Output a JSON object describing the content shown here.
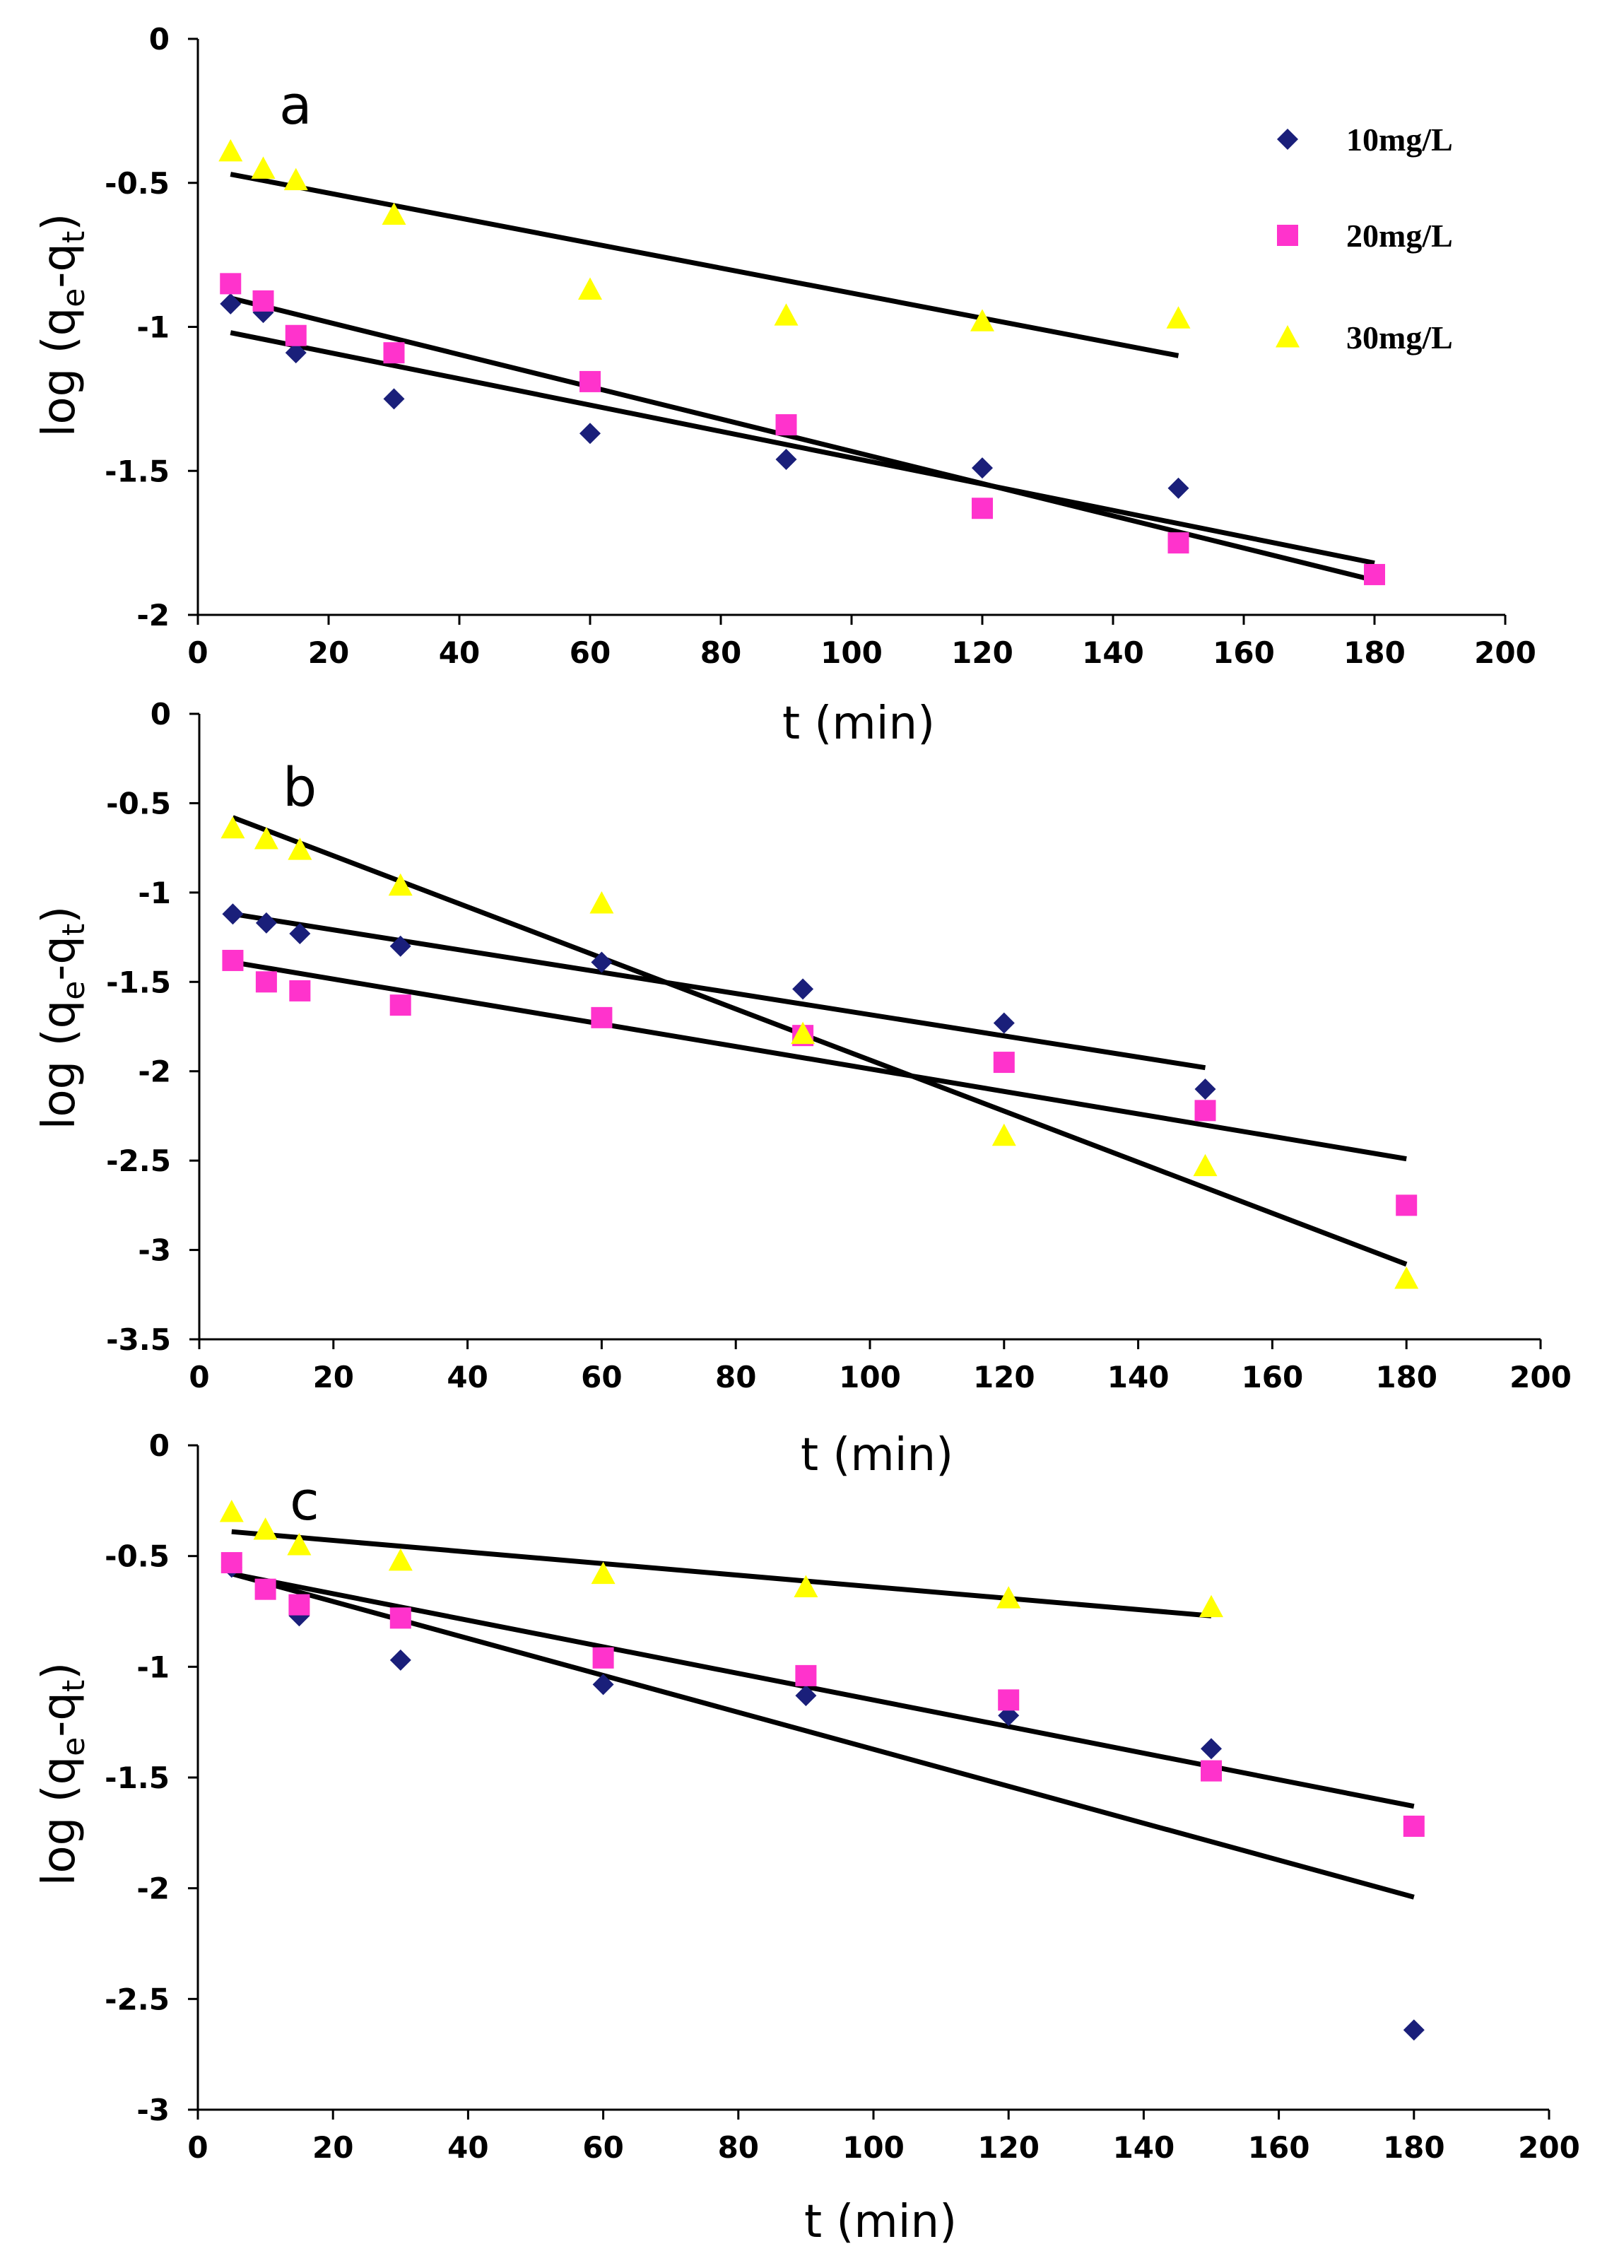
{
  "chart_data": [
    {
      "type": "scatter",
      "panel_label": "a",
      "xlabel": "t (min)",
      "ylabel": "log (qe-qt)",
      "ylabel_main": "log (q",
      "ylabel_sub1": "e",
      "ylabel_mid": "-q",
      "ylabel_sub2": "t",
      "ylabel_end": ")",
      "xlim": [
        0,
        200
      ],
      "ylim": [
        -2,
        0
      ],
      "x_ticks": [
        "0",
        "20",
        "40",
        "60",
        "80",
        "100",
        "120",
        "140",
        "160",
        "180",
        "200"
      ],
      "y_ticks": [
        "0",
        "-0.5",
        "-1",
        "-1.5",
        "-2"
      ],
      "grid": false,
      "legend_position": "top-right",
      "series": [
        {
          "name": "10mg/L",
          "marker": "diamond",
          "color": "#1a1f7a",
          "x": [
            5,
            10,
            15,
            30,
            60,
            90,
            120,
            150
          ],
          "y": [
            -0.92,
            -0.95,
            -1.09,
            -1.25,
            -1.37,
            -1.46,
            -1.49,
            -1.56
          ],
          "fit": {
            "x": [
              5,
              180
            ],
            "y": [
              -1.02,
              -1.82
            ]
          }
        },
        {
          "name": "20mg/L",
          "marker": "square",
          "color": "#ff33cc",
          "x": [
            5,
            10,
            15,
            30,
            60,
            90,
            120,
            150,
            180
          ],
          "y": [
            -0.85,
            -0.91,
            -1.03,
            -1.09,
            -1.19,
            -1.34,
            -1.63,
            -1.75,
            -1.86
          ],
          "fit": {
            "x": [
              5,
              180
            ],
            "y": [
              -0.9,
              -1.88
            ]
          }
        },
        {
          "name": "30mg/L",
          "marker": "triangle",
          "color": "#ffff00",
          "x": [
            5,
            10,
            15,
            30,
            60,
            90,
            120,
            150
          ],
          "y": [
            -0.39,
            -0.45,
            -0.49,
            -0.61,
            -0.87,
            -0.96,
            -0.98,
            -0.97
          ],
          "fit": {
            "x": [
              5,
              150
            ],
            "y": [
              -0.47,
              -1.1
            ]
          }
        }
      ]
    },
    {
      "type": "scatter",
      "panel_label": "b",
      "xlabel": "t (min)",
      "ylabel": "log (qe-qt)",
      "ylabel_main": "log (q",
      "ylabel_sub1": "e",
      "ylabel_mid": "-q",
      "ylabel_sub2": "t",
      "ylabel_end": ")",
      "xlim": [
        0,
        200
      ],
      "ylim": [
        -3.5,
        0
      ],
      "x_ticks": [
        "0",
        "20",
        "40",
        "60",
        "80",
        "100",
        "120",
        "140",
        "160",
        "180",
        "200"
      ],
      "y_ticks": [
        "0",
        "-0.5",
        "-1",
        "-1.5",
        "-2",
        "-2.5",
        "-3",
        "-3.5"
      ],
      "grid": false,
      "series": [
        {
          "name": "10mg/L",
          "marker": "diamond",
          "color": "#1a1f7a",
          "x": [
            5,
            10,
            15,
            30,
            60,
            90,
            120,
            150
          ],
          "y": [
            -1.12,
            -1.17,
            -1.23,
            -1.3,
            -1.39,
            -1.54,
            -1.73,
            -2.1
          ],
          "fit": {
            "x": [
              5,
              150
            ],
            "y": [
              -1.12,
              -1.98
            ]
          }
        },
        {
          "name": "20mg/L",
          "marker": "square",
          "color": "#ff33cc",
          "x": [
            5,
            10,
            15,
            30,
            60,
            90,
            120,
            150,
            180
          ],
          "y": [
            -1.38,
            -1.5,
            -1.55,
            -1.63,
            -1.7,
            -1.8,
            -1.95,
            -2.22,
            -2.75
          ],
          "fit": {
            "x": [
              5,
              180
            ],
            "y": [
              -1.39,
              -2.49
            ]
          }
        },
        {
          "name": "30mg/L",
          "marker": "triangle",
          "color": "#ffff00",
          "x": [
            5,
            10,
            15,
            30,
            60,
            90,
            120,
            150,
            180
          ],
          "y": [
            -0.64,
            -0.7,
            -0.76,
            -0.96,
            -1.06,
            -1.79,
            -2.36,
            -2.53,
            -3.16
          ],
          "fit": {
            "x": [
              5,
              180
            ],
            "y": [
              -0.58,
              -3.08
            ]
          }
        }
      ]
    },
    {
      "type": "scatter",
      "panel_label": "c",
      "xlabel": "t (min)",
      "ylabel": "log (qe-qt)",
      "ylabel_main": "log (q",
      "ylabel_sub1": "e",
      "ylabel_mid": "-q",
      "ylabel_sub2": "t",
      "ylabel_end": ")",
      "xlim": [
        0,
        200
      ],
      "ylim": [
        -3,
        0
      ],
      "x_ticks": [
        "0",
        "20",
        "40",
        "60",
        "80",
        "100",
        "120",
        "140",
        "160",
        "180",
        "200"
      ],
      "y_ticks": [
        "0",
        "-0.5",
        "-1",
        "-1.5",
        "-2",
        "-2.5",
        "-3"
      ],
      "grid": false,
      "series": [
        {
          "name": "10mg/L",
          "marker": "diamond",
          "color": "#1a1f7a",
          "x": [
            5,
            10,
            15,
            30,
            60,
            90,
            120,
            150,
            180
          ],
          "y": [
            -0.55,
            -0.65,
            -0.77,
            -0.97,
            -1.08,
            -1.13,
            -1.22,
            -1.37,
            -2.64
          ],
          "fit": {
            "x": [
              5,
              180
            ],
            "y": [
              -0.58,
              -2.04
            ]
          }
        },
        {
          "name": "20mg/L",
          "marker": "square",
          "color": "#ff33cc",
          "x": [
            5,
            10,
            15,
            30,
            60,
            90,
            120,
            150,
            180
          ],
          "y": [
            -0.53,
            -0.65,
            -0.72,
            -0.78,
            -0.96,
            -1.04,
            -1.15,
            -1.47,
            -1.72
          ],
          "fit": {
            "x": [
              5,
              180
            ],
            "y": [
              -0.58,
              -1.63
            ]
          }
        },
        {
          "name": "30mg/L",
          "marker": "triangle",
          "color": "#ffff00",
          "x": [
            5,
            10,
            15,
            30,
            60,
            90,
            120,
            150
          ],
          "y": [
            -0.3,
            -0.38,
            -0.45,
            -0.52,
            -0.58,
            -0.64,
            -0.69,
            -0.73
          ],
          "fit": {
            "x": [
              5,
              150
            ],
            "y": [
              -0.39,
              -0.77
            ]
          }
        }
      ]
    }
  ]
}
